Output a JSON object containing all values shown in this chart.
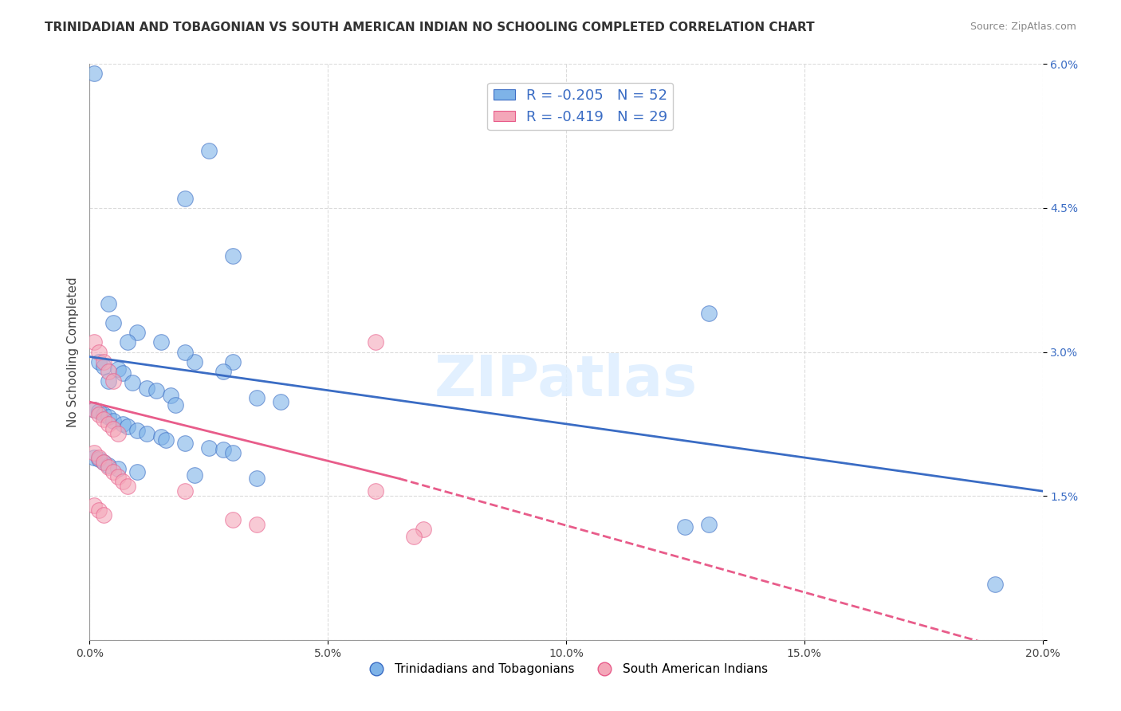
{
  "title": "TRINIDADIAN AND TOBAGONIAN VS SOUTH AMERICAN INDIAN NO SCHOOLING COMPLETED CORRELATION CHART",
  "source": "Source: ZipAtlas.com",
  "xlabel": "",
  "ylabel": "No Schooling Completed",
  "watermark": "ZIPatlas",
  "legend_blue_R": "R = -0.205",
  "legend_blue_N": "N = 52",
  "legend_pink_R": "R = -0.419",
  "legend_pink_N": "N = 29",
  "legend_label_blue": "Trinidadians and Tobagonians",
  "legend_label_pink": "South American Indians",
  "xlim": [
    0.0,
    0.2
  ],
  "ylim": [
    0.0,
    0.06
  ],
  "x_ticks": [
    0.0,
    0.05,
    0.1,
    0.15,
    0.2
  ],
  "x_tick_labels": [
    "0.0%",
    "5.0%",
    "10.0%",
    "15.0%",
    "20.0%"
  ],
  "y_ticks": [
    0.0,
    0.015,
    0.03,
    0.045,
    0.06
  ],
  "y_tick_labels": [
    "",
    "1.5%",
    "3.0%",
    "4.5%",
    "6.0%"
  ],
  "blue_color": "#7EB3E8",
  "pink_color": "#F4A7B9",
  "blue_line_color": "#3A6CC4",
  "pink_line_color": "#E85C8A",
  "blue_scatter": [
    [
      0.001,
      0.059
    ],
    [
      0.025,
      0.051
    ],
    [
      0.02,
      0.046
    ],
    [
      0.03,
      0.04
    ],
    [
      0.022,
      0.029
    ],
    [
      0.004,
      0.035
    ],
    [
      0.005,
      0.033
    ],
    [
      0.01,
      0.032
    ],
    [
      0.015,
      0.031
    ],
    [
      0.008,
      0.031
    ],
    [
      0.02,
      0.03
    ],
    [
      0.03,
      0.029
    ],
    [
      0.028,
      0.028
    ],
    [
      0.002,
      0.029
    ],
    [
      0.003,
      0.0285
    ],
    [
      0.006,
      0.0282
    ],
    [
      0.007,
      0.0278
    ],
    [
      0.004,
      0.027
    ],
    [
      0.009,
      0.0268
    ],
    [
      0.012,
      0.0262
    ],
    [
      0.014,
      0.026
    ],
    [
      0.017,
      0.0255
    ],
    [
      0.035,
      0.0252
    ],
    [
      0.04,
      0.0248
    ],
    [
      0.018,
      0.0245
    ],
    [
      0.001,
      0.024
    ],
    [
      0.002,
      0.0238
    ],
    [
      0.003,
      0.0235
    ],
    [
      0.004,
      0.0232
    ],
    [
      0.005,
      0.0228
    ],
    [
      0.007,
      0.0225
    ],
    [
      0.008,
      0.0222
    ],
    [
      0.01,
      0.0218
    ],
    [
      0.012,
      0.0215
    ],
    [
      0.015,
      0.0212
    ],
    [
      0.016,
      0.0208
    ],
    [
      0.02,
      0.0205
    ],
    [
      0.025,
      0.02
    ],
    [
      0.028,
      0.0198
    ],
    [
      0.03,
      0.0195
    ],
    [
      0.001,
      0.019
    ],
    [
      0.002,
      0.0188
    ],
    [
      0.003,
      0.0185
    ],
    [
      0.004,
      0.0182
    ],
    [
      0.006,
      0.0178
    ],
    [
      0.01,
      0.0175
    ],
    [
      0.022,
      0.0172
    ],
    [
      0.035,
      0.0168
    ],
    [
      0.13,
      0.034
    ],
    [
      0.13,
      0.012
    ],
    [
      0.125,
      0.0118
    ],
    [
      0.19,
      0.0058
    ]
  ],
  "pink_scatter": [
    [
      0.001,
      0.031
    ],
    [
      0.002,
      0.03
    ],
    [
      0.003,
      0.029
    ],
    [
      0.004,
      0.028
    ],
    [
      0.005,
      0.027
    ],
    [
      0.001,
      0.024
    ],
    [
      0.002,
      0.0235
    ],
    [
      0.003,
      0.023
    ],
    [
      0.004,
      0.0225
    ],
    [
      0.005,
      0.022
    ],
    [
      0.006,
      0.0215
    ],
    [
      0.001,
      0.0195
    ],
    [
      0.002,
      0.019
    ],
    [
      0.003,
      0.0185
    ],
    [
      0.004,
      0.018
    ],
    [
      0.005,
      0.0175
    ],
    [
      0.006,
      0.017
    ],
    [
      0.007,
      0.0165
    ],
    [
      0.008,
      0.016
    ],
    [
      0.02,
      0.0155
    ],
    [
      0.001,
      0.014
    ],
    [
      0.002,
      0.0135
    ],
    [
      0.003,
      0.013
    ],
    [
      0.03,
      0.0125
    ],
    [
      0.035,
      0.012
    ],
    [
      0.06,
      0.031
    ],
    [
      0.06,
      0.0155
    ],
    [
      0.07,
      0.0115
    ],
    [
      0.068,
      0.0108
    ]
  ],
  "blue_line": [
    [
      0.0,
      0.0295
    ],
    [
      0.2,
      0.0155
    ]
  ],
  "pink_line_solid": [
    [
      0.0,
      0.0248
    ],
    [
      0.065,
      0.0168
    ]
  ],
  "pink_line_dashed": [
    [
      0.065,
      0.0168
    ],
    [
      0.2,
      -0.002
    ]
  ],
  "background_color": "#FFFFFF",
  "grid_color": "#CCCCCC",
  "title_fontsize": 11,
  "axis_label_fontsize": 11,
  "tick_fontsize": 10,
  "source_fontsize": 9
}
